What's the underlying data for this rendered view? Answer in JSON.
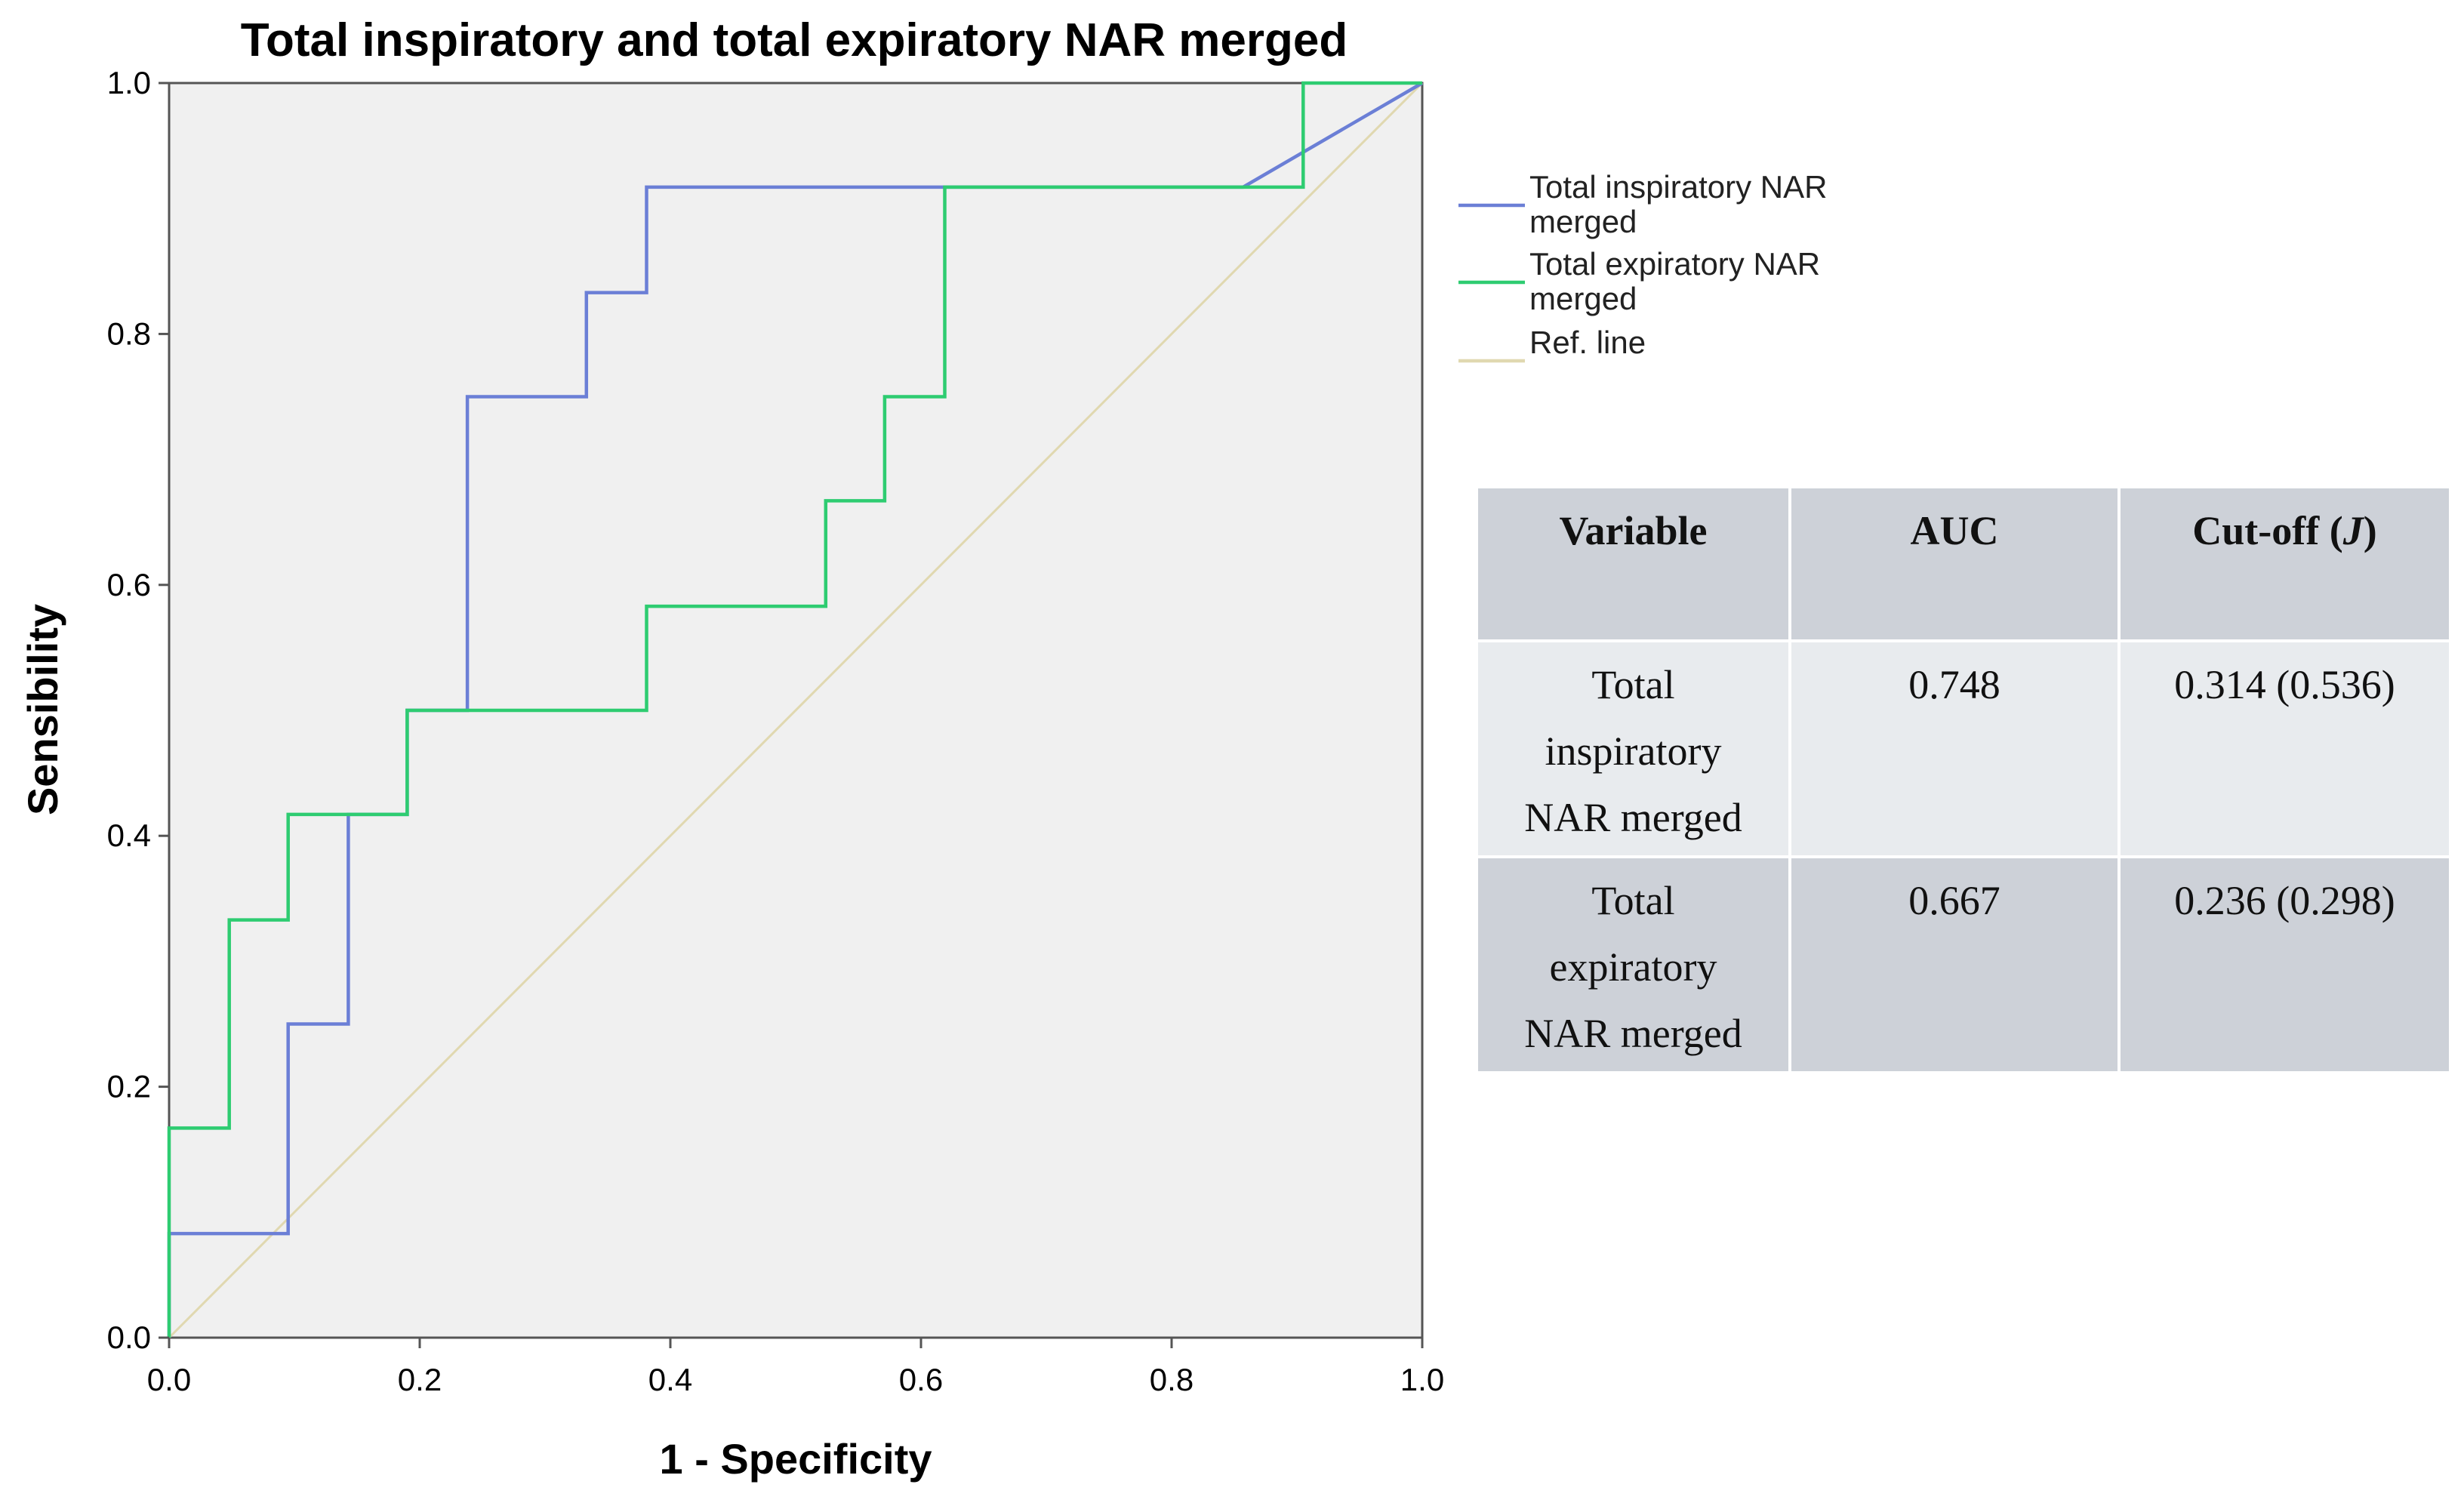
{
  "chart_data": {
    "type": "line",
    "title": "Total inspiratory and total expiratory NAR merged",
    "xlabel": "1 - Specificity",
    "ylabel": "Sensibility",
    "xlim": [
      0,
      1
    ],
    "ylim": [
      0,
      1
    ],
    "x_ticks": [
      "0.0",
      "0.2",
      "0.4",
      "0.6",
      "0.8",
      "1.0"
    ],
    "y_ticks": [
      "0.0",
      "0.2",
      "0.4",
      "0.6",
      "0.8",
      "1.0"
    ],
    "grid": false,
    "legend_position": "right",
    "series": [
      {
        "name": "Total inspiratory NAR merged",
        "color": "#6b7fd6",
        "points": [
          [
            0,
            0
          ],
          [
            0,
            0.083
          ],
          [
            0.095,
            0.083
          ],
          [
            0.095,
            0.25
          ],
          [
            0.143,
            0.25
          ],
          [
            0.143,
            0.417
          ],
          [
            0.19,
            0.417
          ],
          [
            0.19,
            0.5
          ],
          [
            0.238,
            0.5
          ],
          [
            0.238,
            0.75
          ],
          [
            0.333,
            0.75
          ],
          [
            0.333,
            0.833
          ],
          [
            0.381,
            0.833
          ],
          [
            0.381,
            0.917
          ],
          [
            0.857,
            0.917
          ],
          [
            1,
            1
          ]
        ]
      },
      {
        "name": "Total expiratory NAR merged",
        "color": "#2ecc71",
        "points": [
          [
            0,
            0
          ],
          [
            0,
            0.167
          ],
          [
            0.048,
            0.167
          ],
          [
            0.048,
            0.333
          ],
          [
            0.095,
            0.333
          ],
          [
            0.095,
            0.417
          ],
          [
            0.19,
            0.417
          ],
          [
            0.19,
            0.5
          ],
          [
            0.381,
            0.5
          ],
          [
            0.381,
            0.583
          ],
          [
            0.524,
            0.583
          ],
          [
            0.524,
            0.667
          ],
          [
            0.571,
            0.667
          ],
          [
            0.571,
            0.75
          ],
          [
            0.619,
            0.75
          ],
          [
            0.619,
            0.917
          ],
          [
            0.905,
            0.917
          ],
          [
            0.905,
            1
          ],
          [
            1,
            1
          ]
        ]
      },
      {
        "name": "Ref. line",
        "color": "#e0d8b0",
        "points": [
          [
            0,
            0
          ],
          [
            1,
            1
          ]
        ]
      }
    ],
    "legend": [
      {
        "line1": "Total inspiratory NAR",
        "line2": "merged"
      },
      {
        "line1": "Total expiratory NAR",
        "line2": "merged"
      },
      {
        "line1": "Ref. line",
        "line2": ""
      }
    ]
  },
  "table": {
    "headers": [
      "Variable",
      "AUC",
      "Cut-off"
    ],
    "cutoff_suffix": "J",
    "rows": [
      {
        "variable": [
          "Total",
          "inspiratory",
          "NAR merged"
        ],
        "auc": "0.748",
        "cutoff": "0.314 (0.536)"
      },
      {
        "variable": [
          "Total",
          "expiratory",
          "NAR merged"
        ],
        "auc": "0.667",
        "cutoff": "0.236 (0.298)"
      }
    ]
  },
  "colors": {
    "plot_background": "#f0f0f0",
    "table_header_bg": "#cdd1d8",
    "table_row_light": "#e8ebee"
  }
}
